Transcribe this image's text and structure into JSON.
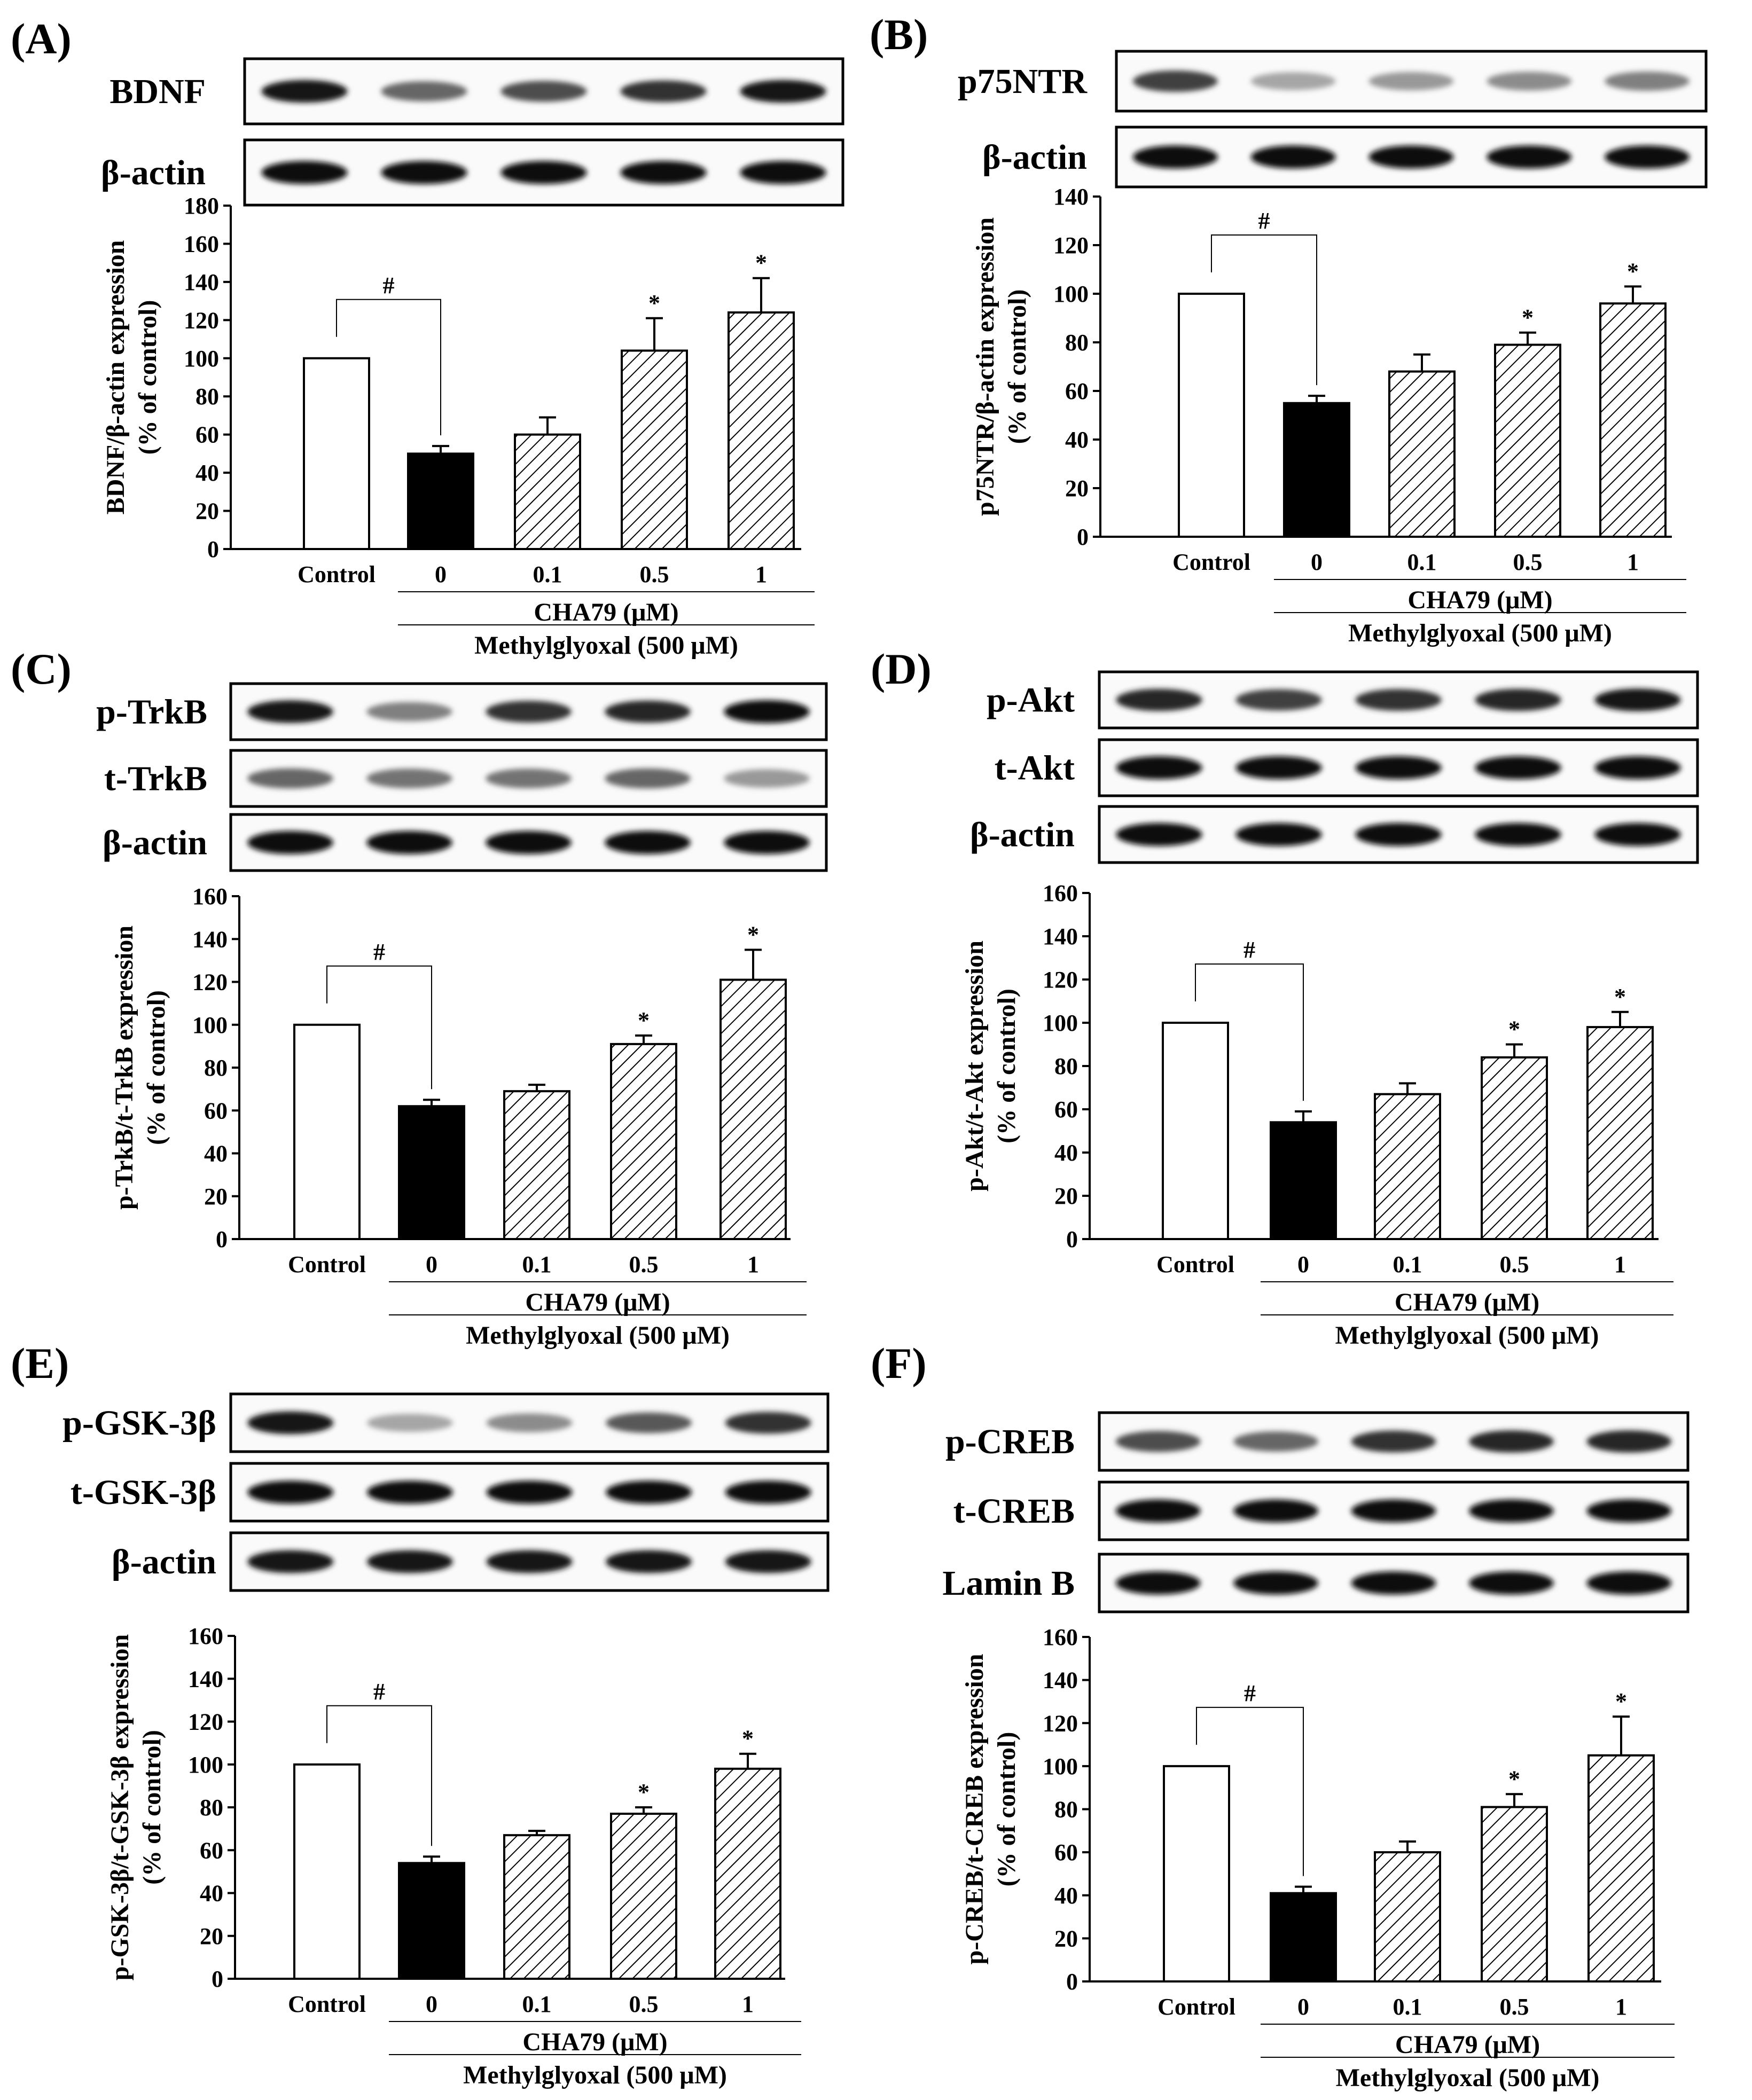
{
  "colors": {
    "ink": "#000000",
    "control_fill": "#ffffff",
    "zero_fill": "#000000",
    "band": "#1a1a1a"
  },
  "panels": [
    {
      "label": "(A)",
      "blots": [
        "BDNF",
        "β-actin"
      ]
    },
    {
      "label": "(B)",
      "blots": [
        "p75NTR",
        "β-actin"
      ]
    },
    {
      "label": "(C)",
      "blots": [
        "p-TrkB",
        "t-TrkB",
        "β-actin"
      ]
    },
    {
      "label": "(D)",
      "blots": [
        "p-Akt",
        "t-Akt",
        "β-actin"
      ]
    },
    {
      "label": "(E)",
      "blots": [
        "p-GSK-3β",
        "t-GSK-3β",
        "β-actin"
      ]
    },
    {
      "label": "(F)",
      "blots": [
        "p-CREB",
        "t-CREB",
        "Lamin B"
      ]
    }
  ],
  "chart_data": [
    {
      "type": "bar",
      "ylabel": "BDNF/β-actin expression",
      "ylabel2": "(% of control)",
      "ylim": [
        0,
        180
      ],
      "yticks": [
        "0",
        "20",
        "40",
        "60",
        "80",
        "100",
        "120",
        "140",
        "160",
        "180"
      ],
      "categories": [
        "Control",
        "0",
        "0.1",
        "0.5",
        "1"
      ],
      "values": [
        100,
        50,
        60,
        104,
        124
      ],
      "errors": [
        0,
        4,
        9,
        17,
        18
      ],
      "sig": [
        "",
        "",
        "",
        "*",
        "*"
      ],
      "hash": "#",
      "group_label": "CHA79 (μM)",
      "treatment_label": "Methylglyoxal (500 μM)"
    },
    {
      "type": "bar",
      "ylabel": "p75NTR/β-actin expression",
      "ylabel2": "(% of control)",
      "ylim": [
        0,
        140
      ],
      "yticks": [
        "0",
        "20",
        "40",
        "60",
        "80",
        "100",
        "120",
        "140"
      ],
      "categories": [
        "Control",
        "0",
        "0.1",
        "0.5",
        "1"
      ],
      "values": [
        100,
        55,
        68,
        79,
        96
      ],
      "errors": [
        0,
        3,
        7,
        5,
        7
      ],
      "sig": [
        "",
        "",
        "",
        "*",
        "*"
      ],
      "hash": "#",
      "group_label": "CHA79 (μM)",
      "treatment_label": "Methylglyoxal (500 μM)"
    },
    {
      "type": "bar",
      "ylabel": "p-TrkB/t-TrkB expression",
      "ylabel2": "(% of control)",
      "ylim": [
        0,
        160
      ],
      "yticks": [
        "0",
        "20",
        "40",
        "60",
        "80",
        "100",
        "120",
        "140",
        "160"
      ],
      "categories": [
        "Control",
        "0",
        "0.1",
        "0.5",
        "1"
      ],
      "values": [
        100,
        62,
        69,
        91,
        121
      ],
      "errors": [
        0,
        3,
        3,
        4,
        14
      ],
      "sig": [
        "",
        "",
        "",
        "*",
        "*"
      ],
      "hash": "#",
      "group_label": "CHA79 (μM)",
      "treatment_label": "Methylglyoxal (500 μM)"
    },
    {
      "type": "bar",
      "ylabel": "p-Akt/t-Akt expression",
      "ylabel2": "(% of control)",
      "ylim": [
        0,
        160
      ],
      "yticks": [
        "0",
        "20",
        "40",
        "60",
        "80",
        "100",
        "120",
        "140",
        "160"
      ],
      "categories": [
        "Control",
        "0",
        "0.1",
        "0.5",
        "1"
      ],
      "values": [
        100,
        54,
        67,
        84,
        98
      ],
      "errors": [
        0,
        5,
        5,
        6,
        7
      ],
      "sig": [
        "",
        "",
        "",
        "*",
        "*"
      ],
      "hash": "#",
      "group_label": "CHA79 (μM)",
      "treatment_label": "Methylglyoxal (500 μM)"
    },
    {
      "type": "bar",
      "ylabel": "p-GSK-3β/t-GSK-3β expression",
      "ylabel2": "(% of control)",
      "ylim": [
        0,
        160
      ],
      "yticks": [
        "0",
        "20",
        "40",
        "60",
        "80",
        "100",
        "120",
        "140",
        "160"
      ],
      "categories": [
        "Control",
        "0",
        "0.1",
        "0.5",
        "1"
      ],
      "values": [
        100,
        54,
        67,
        77,
        98
      ],
      "errors": [
        0,
        3,
        2,
        3,
        7
      ],
      "sig": [
        "",
        "",
        "",
        "*",
        "*"
      ],
      "hash": "#",
      "group_label": "CHA79 (μM)",
      "treatment_label": "Methylglyoxal (500 μM)"
    },
    {
      "type": "bar",
      "ylabel": "p-CREB/t-CREB expression",
      "ylabel2": "(% of control)",
      "ylim": [
        0,
        160
      ],
      "yticks": [
        "0",
        "20",
        "40",
        "60",
        "80",
        "100",
        "120",
        "140",
        "160"
      ],
      "categories": [
        "Control",
        "0",
        "0.1",
        "0.5",
        "1"
      ],
      "values": [
        100,
        41,
        60,
        81,
        105
      ],
      "errors": [
        0,
        3,
        5,
        6,
        18
      ],
      "sig": [
        "",
        "",
        "",
        "*",
        "*"
      ],
      "hash": "#",
      "group_label": "CHA79 (μM)",
      "treatment_label": "Methylglyoxal (500 μM)"
    }
  ]
}
